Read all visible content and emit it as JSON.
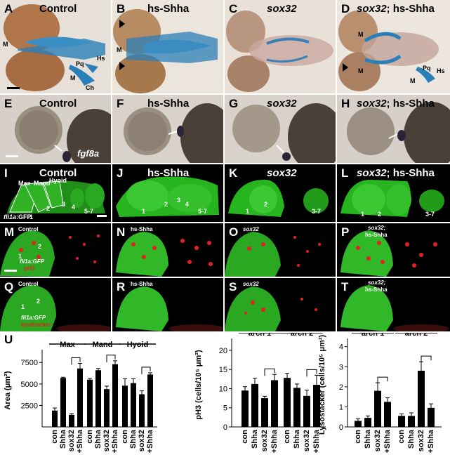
{
  "colors": {
    "cartilage": "#2b7fb8",
    "gfp": "#27b51f",
    "marker": "#e62020",
    "bar": "#000000",
    "brightfield": "#cfc7bd"
  },
  "rowA": {
    "panels": [
      {
        "letter": "A",
        "title": "Control",
        "italic": false
      },
      {
        "letter": "B",
        "title": "hs-Shha",
        "italic": false
      },
      {
        "letter": "C",
        "title": "sox32",
        "italic": true
      },
      {
        "letter": "D",
        "title_italic": "sox32",
        "title_rest": "; hs-Shha"
      }
    ],
    "annotations": {
      "m": "M",
      "pq": "Pq",
      "hs": "Hs",
      "ch": "Ch"
    }
  },
  "rowE": {
    "panels": [
      {
        "letter": "E",
        "title": "Control",
        "italic": false
      },
      {
        "letter": "F",
        "title": "hs-Shha",
        "italic": false
      },
      {
        "letter": "G",
        "title": "sox32",
        "italic": true
      },
      {
        "letter": "H",
        "title_italic": "sox32",
        "title_rest": "; hs-Shha"
      }
    ],
    "gene": "fgf8a"
  },
  "rowI": {
    "panels": [
      {
        "letter": "I",
        "title": "Control",
        "italic": false
      },
      {
        "letter": "J",
        "title": "hs-Shha",
        "italic": false
      },
      {
        "letter": "K",
        "title": "sox32",
        "italic": true
      },
      {
        "letter": "L",
        "title_italic": "sox32",
        "title_rest": "; hs-Shha"
      }
    ],
    "arch_labels": {
      "max": "Max",
      "mand": "Mand",
      "hyoid": "Hyoid"
    },
    "nums": {
      "n1": "1",
      "n2": "2",
      "n3": "3",
      "n4": "4",
      "n57": "5-7",
      "n37": "3-7"
    },
    "reporter_italic": "fli1a",
    "reporter_rest": ":GFP"
  },
  "rowM": {
    "panels": [
      {
        "letter": "M",
        "title": "Control"
      },
      {
        "letter": "N",
        "title": "hs-Shha"
      },
      {
        "letter": "O",
        "title": "sox32"
      },
      {
        "letter": "P",
        "title_a": "sox32;",
        "title_b": "hs-Shha"
      }
    ],
    "reporter": "fli1a:GFP",
    "marker": "pH3"
  },
  "rowQ": {
    "panels": [
      {
        "letter": "Q",
        "title": "Control"
      },
      {
        "letter": "R",
        "title": "hs-Shha"
      },
      {
        "letter": "S",
        "title": "sox32"
      },
      {
        "letter": "T",
        "title_a": "sox32;",
        "title_b": "hs-Shha"
      }
    ],
    "reporter": "fli1a:GFP",
    "marker": "lysotracker"
  },
  "panelU": {
    "letter": "U"
  },
  "chart_data": [
    {
      "type": "bar",
      "groups": [
        "Max",
        "Mand",
        "Hyoid"
      ],
      "categories": [
        "con",
        "Shha",
        "sox32",
        "sox32 +Shha"
      ],
      "ylabel": "Area (μm²)",
      "yticks": [
        2500,
        5000,
        7500
      ],
      "ylim": [
        0,
        8500
      ],
      "values": [
        [
          1900,
          5700,
          1400,
          6800
        ],
        [
          5500,
          6600,
          4400,
          7300
        ],
        [
          4800,
          5100,
          3800,
          6100
        ]
      ],
      "errors": [
        [
          300,
          80,
          150,
          600
        ],
        [
          150,
          200,
          350,
          400
        ],
        [
          800,
          500,
          400,
          200
        ]
      ]
    },
    {
      "type": "bar",
      "groups": [
        "arch 1",
        "arch 2"
      ],
      "categories": [
        "con",
        "Shha",
        "sox32",
        "sox32 +Shha"
      ],
      "ylabel": "pH3 (cells/10⁵ μm²)",
      "yticks": [
        0,
        5,
        10,
        15,
        20
      ],
      "ylim": [
        0,
        22
      ],
      "values": [
        [
          9.5,
          11.2,
          7.5,
          12.2
        ],
        [
          12.8,
          10.2,
          8.1,
          11.0
        ]
      ],
      "errors": [
        [
          1.0,
          1.5,
          0.5,
          1.5
        ],
        [
          1.2,
          1.0,
          1.5,
          2.5
        ]
      ]
    },
    {
      "type": "bar",
      "groups": [
        "arch 1",
        "arch 2"
      ],
      "categories": [
        "con",
        "Shha",
        "sox32",
        "sox32 +Shha"
      ],
      "ylabel": "Lysostacker (cells/10⁵ μm²)",
      "yticks": [
        0,
        1,
        2,
        3,
        4
      ],
      "ylim": [
        0,
        4.2
      ],
      "values": [
        [
          0.3,
          0.45,
          1.8,
          1.25
        ],
        [
          0.55,
          0.55,
          2.8,
          0.95
        ]
      ],
      "errors": [
        [
          0.1,
          0.1,
          0.4,
          0.2
        ],
        [
          0.1,
          0.15,
          0.45,
          0.2
        ]
      ]
    }
  ]
}
